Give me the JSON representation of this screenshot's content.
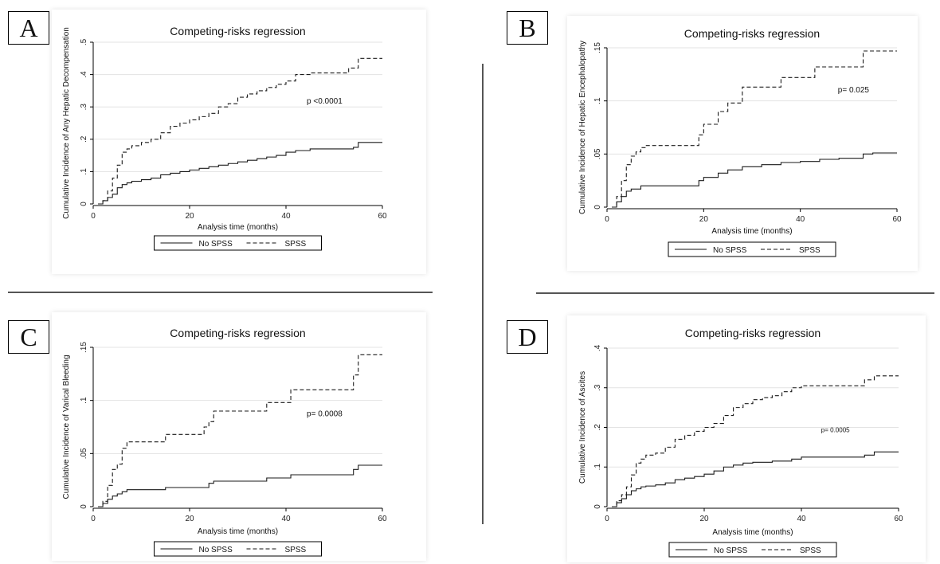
{
  "chart_data": [
    {
      "type": "line",
      "panel": "A",
      "title": "Competing-risks regression",
      "xlabel": "Analysis time (months)",
      "ylabel": "Cumulative Incidence of Any Hepatic Decompensation",
      "xlim": [
        0,
        60
      ],
      "ylim": [
        0,
        0.5
      ],
      "xticks": [
        "0",
        "20",
        "40",
        "60"
      ],
      "yticks": [
        "0",
        ".1",
        ".2",
        ".3",
        ".4",
        ".5"
      ],
      "ytick_values": [
        0,
        0.1,
        0.2,
        0.3,
        0.4,
        0.5
      ],
      "annotation": "p <0.0001",
      "annotation_at": [
        48,
        0.31
      ],
      "legend": [
        "No SPSS",
        "SPSS"
      ],
      "series": [
        {
          "name": "No SPSS",
          "style": "solid",
          "x": [
            1,
            2,
            3,
            4,
            5,
            6,
            7,
            8,
            10,
            12,
            14,
            16,
            18,
            20,
            22,
            24,
            26,
            28,
            30,
            32,
            34,
            36,
            38,
            40,
            42,
            45,
            50,
            54,
            55,
            60
          ],
          "y": [
            0,
            0.01,
            0.02,
            0.03,
            0.05,
            0.06,
            0.065,
            0.07,
            0.075,
            0.08,
            0.09,
            0.095,
            0.1,
            0.105,
            0.11,
            0.115,
            0.12,
            0.125,
            0.13,
            0.135,
            0.14,
            0.145,
            0.15,
            0.16,
            0.165,
            0.17,
            0.17,
            0.175,
            0.19,
            0.19
          ]
        },
        {
          "name": "SPSS",
          "style": "dashed",
          "x": [
            1,
            2,
            3,
            4,
            5,
            6,
            7,
            8,
            10,
            12,
            14,
            16,
            18,
            20,
            22,
            24,
            26,
            28,
            30,
            32,
            34,
            36,
            38,
            40,
            42,
            45,
            50,
            53,
            55,
            60
          ],
          "y": [
            0,
            0.01,
            0.04,
            0.08,
            0.12,
            0.16,
            0.17,
            0.18,
            0.19,
            0.2,
            0.22,
            0.24,
            0.25,
            0.26,
            0.27,
            0.28,
            0.3,
            0.31,
            0.33,
            0.34,
            0.35,
            0.36,
            0.37,
            0.38,
            0.4,
            0.405,
            0.405,
            0.42,
            0.45,
            0.45
          ]
        }
      ]
    },
    {
      "type": "line",
      "panel": "B",
      "title": "Competing-risks regression",
      "xlabel": "Analysis time (months)",
      "ylabel": "Cumulative Incidence of Hepatic Encephalopathy",
      "xlim": [
        0,
        60
      ],
      "ylim": [
        0,
        0.15
      ],
      "xticks": [
        "0",
        "20",
        "40",
        "60"
      ],
      "yticks": [
        "0",
        ".05",
        ".1",
        ".15"
      ],
      "ytick_values": [
        0,
        0.05,
        0.1,
        0.15
      ],
      "annotation": "p= 0.025",
      "annotation_at": [
        51,
        0.108
      ],
      "legend": [
        "No SPSS",
        "SPSS"
      ],
      "series": [
        {
          "name": "No SPSS",
          "style": "solid",
          "x": [
            1,
            2,
            3,
            4,
            5,
            7,
            9,
            12,
            15,
            19,
            20,
            23,
            25,
            28,
            32,
            36,
            40,
            44,
            48,
            53,
            55,
            60
          ],
          "y": [
            0,
            0.005,
            0.01,
            0.015,
            0.017,
            0.02,
            0.02,
            0.02,
            0.02,
            0.025,
            0.028,
            0.032,
            0.035,
            0.038,
            0.04,
            0.042,
            0.043,
            0.045,
            0.046,
            0.05,
            0.051,
            0.051
          ]
        },
        {
          "name": "SPSS",
          "style": "dashed",
          "x": [
            1,
            2,
            3,
            4,
            5,
            6,
            7,
            8,
            10,
            14,
            18,
            19,
            20,
            22,
            23,
            25,
            28,
            33,
            36,
            40,
            43,
            48,
            52,
            53,
            55,
            60
          ],
          "y": [
            0,
            0.01,
            0.025,
            0.04,
            0.048,
            0.052,
            0.056,
            0.058,
            0.058,
            0.058,
            0.058,
            0.068,
            0.078,
            0.078,
            0.09,
            0.098,
            0.113,
            0.113,
            0.122,
            0.122,
            0.132,
            0.132,
            0.132,
            0.147,
            0.147,
            0.147
          ]
        }
      ]
    },
    {
      "type": "line",
      "panel": "C",
      "title": "Competing-risks regression",
      "xlabel": "Analysis time (months)",
      "ylabel": "Cumulative Incidence of Varical Bleeding",
      "xlim": [
        0,
        60
      ],
      "ylim": [
        0,
        0.15
      ],
      "xticks": [
        "0",
        "20",
        "40",
        "60"
      ],
      "yticks": [
        "0",
        ".05",
        ".1",
        ".15"
      ],
      "ytick_values": [
        0,
        0.05,
        0.1,
        0.15
      ],
      "annotation": "p= 0.0008",
      "annotation_at": [
        48,
        0.085
      ],
      "legend": [
        "No SPSS",
        "SPSS"
      ],
      "series": [
        {
          "name": "No SPSS",
          "style": "solid",
          "x": [
            1,
            2,
            3,
            4,
            5,
            6,
            7,
            10,
            15,
            20,
            24,
            25,
            30,
            36,
            41,
            45,
            50,
            54,
            55,
            60
          ],
          "y": [
            0,
            0.003,
            0.007,
            0.01,
            0.012,
            0.014,
            0.016,
            0.016,
            0.018,
            0.018,
            0.022,
            0.024,
            0.024,
            0.027,
            0.03,
            0.03,
            0.03,
            0.035,
            0.039,
            0.039
          ]
        },
        {
          "name": "SPSS",
          "style": "dashed",
          "x": [
            1,
            2,
            3,
            4,
            5,
            6,
            7,
            10,
            15,
            20,
            23,
            24,
            25,
            30,
            36,
            40,
            41,
            45,
            50,
            54,
            55,
            60
          ],
          "y": [
            0,
            0.005,
            0.02,
            0.035,
            0.04,
            0.055,
            0.061,
            0.061,
            0.068,
            0.068,
            0.075,
            0.08,
            0.09,
            0.09,
            0.098,
            0.098,
            0.11,
            0.11,
            0.11,
            0.124,
            0.143,
            0.143
          ]
        }
      ]
    },
    {
      "type": "line",
      "panel": "D",
      "title": "Competing-risks regression",
      "xlabel": "Analysis time (months)",
      "ylabel": "Cumulative Incidence of Ascites",
      "xlim": [
        0,
        60
      ],
      "ylim": [
        0,
        0.4
      ],
      "xticks": [
        "0",
        "20",
        "40",
        "60"
      ],
      "yticks": [
        "0",
        ".1",
        ".2",
        ".3",
        ".4"
      ],
      "ytick_values": [
        0,
        0.1,
        0.2,
        0.3,
        0.4
      ],
      "annotation": "p= 0.0005",
      "annotation_at": [
        47,
        0.188
      ],
      "legend": [
        "No SPSS",
        "SPSS"
      ],
      "series": [
        {
          "name": "No SPSS",
          "style": "solid",
          "x": [
            1,
            2,
            3,
            4,
            5,
            6,
            7,
            8,
            10,
            12,
            14,
            16,
            18,
            20,
            22,
            24,
            26,
            28,
            30,
            34,
            38,
            40,
            45,
            50,
            53,
            55,
            60
          ],
          "y": [
            0,
            0.01,
            0.02,
            0.03,
            0.04,
            0.045,
            0.05,
            0.052,
            0.055,
            0.06,
            0.068,
            0.072,
            0.076,
            0.082,
            0.09,
            0.1,
            0.105,
            0.11,
            0.112,
            0.115,
            0.12,
            0.125,
            0.125,
            0.125,
            0.13,
            0.138,
            0.138
          ]
        },
        {
          "name": "SPSS",
          "style": "dashed",
          "x": [
            1,
            2,
            3,
            4,
            5,
            6,
            7,
            8,
            10,
            12,
            14,
            16,
            18,
            20,
            22,
            24,
            26,
            28,
            30,
            32,
            34,
            36,
            38,
            40,
            45,
            50,
            53,
            55,
            60
          ],
          "y": [
            0,
            0.015,
            0.03,
            0.05,
            0.08,
            0.11,
            0.12,
            0.13,
            0.135,
            0.15,
            0.17,
            0.18,
            0.19,
            0.2,
            0.21,
            0.23,
            0.25,
            0.26,
            0.27,
            0.275,
            0.28,
            0.29,
            0.3,
            0.305,
            0.305,
            0.305,
            0.32,
            0.33,
            0.33
          ]
        }
      ]
    }
  ]
}
